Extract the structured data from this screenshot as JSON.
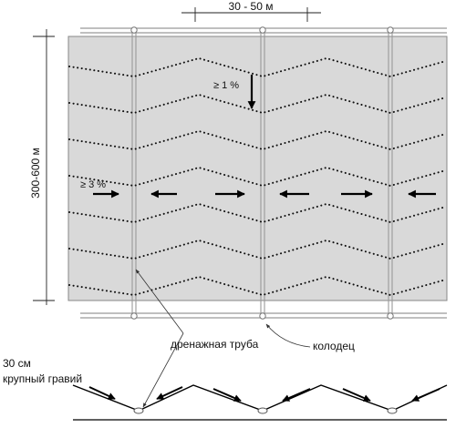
{
  "dimensions": {
    "width_label": "30 - 50 м",
    "length_label": "300-600 м"
  },
  "slopes": {
    "longitudinal_label": "≥ 1 %",
    "transverse_label": "≥ 3 %"
  },
  "labels": {
    "drain_pipe": "дренажная труба",
    "well": "колодец",
    "thickness": "30 см",
    "gravel": "крупный гравий"
  },
  "colors": {
    "field_fill": "#d9d9d9",
    "field_stroke": "#888888",
    "pipe": "#999999",
    "dots": "#111111",
    "arrow": "#000000"
  }
}
